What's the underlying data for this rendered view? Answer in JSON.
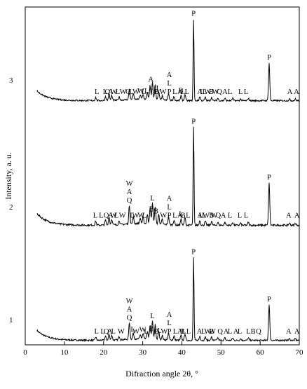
{
  "chart_data": {
    "type": "line",
    "title": "",
    "xlabel": "Difraction angle 2θ, °",
    "ylabel": "Intensity, a. u.",
    "xlim": [
      0,
      70
    ],
    "xticks": [
      0,
      10,
      20,
      30,
      40,
      50,
      60,
      70
    ],
    "grid": false,
    "legend": "none",
    "series_note": "stacked XRD patterns, offset vertically",
    "series": [
      {
        "name": "1",
        "peaks": [
          {
            "x": 18.0,
            "h": 0.04
          },
          {
            "x": 20.5,
            "h": 0.05
          },
          {
            "x": 21.4,
            "h": 0.07
          },
          {
            "x": 22.1,
            "h": 0.06
          },
          {
            "x": 24.0,
            "h": 0.04
          },
          {
            "x": 26.6,
            "h": 0.2
          },
          {
            "x": 27.6,
            "h": 0.07
          },
          {
            "x": 29.4,
            "h": 0.05
          },
          {
            "x": 30.1,
            "h": 0.06
          },
          {
            "x": 31.2,
            "h": 0.09
          },
          {
            "x": 31.9,
            "h": 0.17
          },
          {
            "x": 32.5,
            "h": 0.22
          },
          {
            "x": 33.2,
            "h": 0.18
          },
          {
            "x": 34.1,
            "h": 0.1
          },
          {
            "x": 35.0,
            "h": 0.05
          },
          {
            "x": 36.6,
            "h": 0.08
          },
          {
            "x": 38.0,
            "h": 0.05
          },
          {
            "x": 39.8,
            "h": 0.06
          },
          {
            "x": 40.8,
            "h": 0.08
          },
          {
            "x": 43.0,
            "h": 1.0
          },
          {
            "x": 44.6,
            "h": 0.05
          },
          {
            "x": 46.0,
            "h": 0.04
          },
          {
            "x": 47.6,
            "h": 0.04
          },
          {
            "x": 49.2,
            "h": 0.03
          },
          {
            "x": 51.0,
            "h": 0.03
          },
          {
            "x": 53.0,
            "h": 0.03
          },
          {
            "x": 55.0,
            "h": 0.02
          },
          {
            "x": 57.0,
            "h": 0.03
          },
          {
            "x": 62.3,
            "h": 0.43
          },
          {
            "x": 67.5,
            "h": 0.02
          },
          {
            "x": 69.0,
            "h": 0.02
          }
        ],
        "annotations": [
          {
            "x": 18.2,
            "letters": [
              "L"
            ]
          },
          {
            "x": 19.8,
            "letters": [
              "L"
            ]
          },
          {
            "x": 20.7,
            "letters": [
              "Q"
            ]
          },
          {
            "x": 21.6,
            "letters": [
              "A"
            ]
          },
          {
            "x": 22.5,
            "letters": [
              "L"
            ]
          },
          {
            "x": 24.5,
            "letters": [
              "W"
            ]
          },
          {
            "x": 26.6,
            "letters": [
              "W",
              "A",
              "Q"
            ]
          },
          {
            "x": 27.5,
            "letters": [
              "L"
            ]
          },
          {
            "x": 28.3,
            "letters": [
              "W"
            ]
          },
          {
            "x": 30.0,
            "letters": [
              "W"
            ]
          },
          {
            "x": 30.9,
            "letters": [
              "L"
            ]
          },
          {
            "x": 32.2,
            "letters": [
              "B"
            ]
          },
          {
            "x": 32.5,
            "letters": [
              "L"
            ]
          },
          {
            "x": 33.5,
            "letters": [
              "B"
            ]
          },
          {
            "x": 34.3,
            "letters": [
              "L"
            ]
          },
          {
            "x": 35.5,
            "letters": [
              "W"
            ]
          },
          {
            "x": 36.8,
            "letters": [
              "A",
              "L",
              "P"
            ]
          },
          {
            "x": 38.3,
            "letters": [
              "L"
            ]
          },
          {
            "x": 39.5,
            "letters": [
              "A"
            ]
          },
          {
            "x": 40.1,
            "letters": [
              "B"
            ]
          },
          {
            "x": 40.5,
            "letters": [
              "L"
            ]
          },
          {
            "x": 41.7,
            "letters": [
              "L"
            ]
          },
          {
            "x": 43.0,
            "letters": [
              "P"
            ]
          },
          {
            "x": 44.5,
            "letters": [
              "A"
            ]
          },
          {
            "x": 45.5,
            "letters": [
              "L"
            ]
          },
          {
            "x": 47.6,
            "letters": [
              "B"
            ]
          },
          {
            "x": 46.6,
            "letters": [
              "W"
            ]
          },
          {
            "x": 47.8,
            "letters": [
              "W"
            ]
          },
          {
            "x": 49.8,
            "letters": [
              "Q"
            ]
          },
          {
            "x": 51.3,
            "letters": [
              "A"
            ]
          },
          {
            "x": 52.3,
            "letters": [
              "L"
            ]
          },
          {
            "x": 53.8,
            "letters": [
              "A"
            ]
          },
          {
            "x": 54.8,
            "letters": [
              "L"
            ]
          },
          {
            "x": 57.0,
            "letters": [
              "L"
            ]
          },
          {
            "x": 58.2,
            "letters": [
              "B"
            ]
          },
          {
            "x": 59.6,
            "letters": [
              "Q"
            ]
          },
          {
            "x": 62.3,
            "letters": [
              "P"
            ]
          },
          {
            "x": 67.3,
            "letters": [
              "A"
            ]
          },
          {
            "x": 69.4,
            "letters": [
              "A"
            ]
          }
        ]
      },
      {
        "name": "2",
        "peaks": [
          {
            "x": 18.0,
            "h": 0.04
          },
          {
            "x": 20.5,
            "h": 0.05
          },
          {
            "x": 21.4,
            "h": 0.08
          },
          {
            "x": 22.1,
            "h": 0.06
          },
          {
            "x": 24.0,
            "h": 0.04
          },
          {
            "x": 26.6,
            "h": 0.19
          },
          {
            "x": 27.6,
            "h": 0.07
          },
          {
            "x": 29.4,
            "h": 0.05
          },
          {
            "x": 30.1,
            "h": 0.06
          },
          {
            "x": 31.2,
            "h": 0.09
          },
          {
            "x": 31.9,
            "h": 0.16
          },
          {
            "x": 32.5,
            "h": 0.21
          },
          {
            "x": 33.2,
            "h": 0.18
          },
          {
            "x": 34.1,
            "h": 0.1
          },
          {
            "x": 35.0,
            "h": 0.05
          },
          {
            "x": 36.6,
            "h": 0.08
          },
          {
            "x": 38.0,
            "h": 0.05
          },
          {
            "x": 39.8,
            "h": 0.06
          },
          {
            "x": 40.8,
            "h": 0.08
          },
          {
            "x": 43.0,
            "h": 1.0
          },
          {
            "x": 44.6,
            "h": 0.05
          },
          {
            "x": 46.0,
            "h": 0.04
          },
          {
            "x": 47.6,
            "h": 0.04
          },
          {
            "x": 49.2,
            "h": 0.03
          },
          {
            "x": 51.0,
            "h": 0.03
          },
          {
            "x": 53.0,
            "h": 0.03
          },
          {
            "x": 55.0,
            "h": 0.02
          },
          {
            "x": 57.0,
            "h": 0.03
          },
          {
            "x": 62.3,
            "h": 0.43
          },
          {
            "x": 67.5,
            "h": 0.02
          },
          {
            "x": 69.0,
            "h": 0.02
          }
        ],
        "annotations": [
          {
            "x": 17.9,
            "letters": [
              "L"
            ]
          },
          {
            "x": 19.4,
            "letters": [
              "L"
            ]
          },
          {
            "x": 20.7,
            "letters": [
              "Q"
            ]
          },
          {
            "x": 21.8,
            "letters": [
              "A"
            ]
          },
          {
            "x": 22.6,
            "letters": [
              "W"
            ]
          },
          {
            "x": 23.3,
            "letters": [
              "L"
            ]
          },
          {
            "x": 24.8,
            "letters": [
              "W"
            ]
          },
          {
            "x": 26.6,
            "letters": [
              "W",
              "A",
              "Q"
            ]
          },
          {
            "x": 27.3,
            "letters": [
              "L"
            ]
          },
          {
            "x": 28.2,
            "letters": [
              "W"
            ]
          },
          {
            "x": 29.6,
            "letters": [
              "W"
            ]
          },
          {
            "x": 30.4,
            "letters": [
              "L"
            ]
          },
          {
            "x": 32.3,
            "letters": [
              "B"
            ]
          },
          {
            "x": 32.5,
            "letters": [
              "L"
            ]
          },
          {
            "x": 33.4,
            "letters": [
              "B"
            ]
          },
          {
            "x": 35.3,
            "letters": [
              "W"
            ]
          },
          {
            "x": 36.8,
            "letters": [
              "A",
              "L",
              "P"
            ]
          },
          {
            "x": 38.2,
            "letters": [
              "L"
            ]
          },
          {
            "x": 39.5,
            "letters": [
              "A"
            ]
          },
          {
            "x": 39.8,
            "letters": [
              "L"
            ]
          },
          {
            "x": 40.3,
            "letters": [
              "B"
            ]
          },
          {
            "x": 41.6,
            "letters": [
              "L"
            ]
          },
          {
            "x": 43.0,
            "letters": [
              "P"
            ]
          },
          {
            "x": 44.6,
            "letters": [
              "A"
            ]
          },
          {
            "x": 45.7,
            "letters": [
              "L"
            ]
          },
          {
            "x": 44.9,
            "letters": [
              "L"
            ]
          },
          {
            "x": 46.2,
            "letters": [
              "W"
            ]
          },
          {
            "x": 47.6,
            "letters": [
              "B"
            ]
          },
          {
            "x": 48.2,
            "letters": [
              "W"
            ]
          },
          {
            "x": 49.3,
            "letters": [
              "Q"
            ]
          },
          {
            "x": 50.6,
            "letters": [
              "A"
            ]
          },
          {
            "x": 52.3,
            "letters": [
              "L"
            ]
          },
          {
            "x": 54.8,
            "letters": [
              "L"
            ]
          },
          {
            "x": 56.4,
            "letters": [
              "L"
            ]
          },
          {
            "x": 62.3,
            "letters": [
              "P"
            ]
          },
          {
            "x": 67.3,
            "letters": [
              "A"
            ]
          },
          {
            "x": 69.4,
            "letters": [
              "A"
            ]
          }
        ]
      },
      {
        "name": "3",
        "peaks": [
          {
            "x": 18.0,
            "h": 0.04
          },
          {
            "x": 20.5,
            "h": 0.05
          },
          {
            "x": 21.4,
            "h": 0.08
          },
          {
            "x": 22.1,
            "h": 0.06
          },
          {
            "x": 24.0,
            "h": 0.04
          },
          {
            "x": 26.6,
            "h": 0.13
          },
          {
            "x": 27.6,
            "h": 0.07
          },
          {
            "x": 29.4,
            "h": 0.05
          },
          {
            "x": 30.1,
            "h": 0.06
          },
          {
            "x": 31.2,
            "h": 0.09
          },
          {
            "x": 31.9,
            "h": 0.16
          },
          {
            "x": 32.5,
            "h": 0.21
          },
          {
            "x": 33.2,
            "h": 0.19
          },
          {
            "x": 34.1,
            "h": 0.1
          },
          {
            "x": 35.0,
            "h": 0.05
          },
          {
            "x": 36.6,
            "h": 0.08
          },
          {
            "x": 38.0,
            "h": 0.05
          },
          {
            "x": 39.8,
            "h": 0.06
          },
          {
            "x": 40.8,
            "h": 0.08
          },
          {
            "x": 43.0,
            "h": 1.0
          },
          {
            "x": 44.6,
            "h": 0.05
          },
          {
            "x": 46.0,
            "h": 0.04
          },
          {
            "x": 47.6,
            "h": 0.04
          },
          {
            "x": 49.2,
            "h": 0.03
          },
          {
            "x": 51.0,
            "h": 0.03
          },
          {
            "x": 53.0,
            "h": 0.03
          },
          {
            "x": 55.0,
            "h": 0.02
          },
          {
            "x": 57.0,
            "h": 0.03
          },
          {
            "x": 62.3,
            "h": 0.46
          },
          {
            "x": 67.5,
            "h": 0.02
          },
          {
            "x": 69.0,
            "h": 0.02
          }
        ],
        "annotations": [
          {
            "x": 18.3,
            "letters": [
              "L"
            ]
          },
          {
            "x": 20.4,
            "letters": [
              "L"
            ]
          },
          {
            "x": 21.0,
            "letters": [
              "Q"
            ]
          },
          {
            "x": 21.8,
            "letters": [
              "A"
            ]
          },
          {
            "x": 22.6,
            "letters": [
              "W"
            ]
          },
          {
            "x": 23.6,
            "letters": [
              "L"
            ]
          },
          {
            "x": 25.0,
            "letters": [
              "W"
            ]
          },
          {
            "x": 26.3,
            "letters": [
              "Q"
            ]
          },
          {
            "x": 27.1,
            "letters": [
              "L"
            ]
          },
          {
            "x": 28.3,
            "letters": [
              "W"
            ]
          },
          {
            "x": 29.5,
            "letters": [
              "W"
            ]
          },
          {
            "x": 30.3,
            "letters": [
              "L"
            ]
          },
          {
            "x": 31.0,
            "letters": [
              "L"
            ]
          },
          {
            "x": 32.1,
            "letters": [
              "A",
              "L"
            ]
          },
          {
            "x": 33.5,
            "letters": [
              "B"
            ]
          },
          {
            "x": 34.0,
            "letters": [
              "L"
            ]
          },
          {
            "x": 35.2,
            "letters": [
              "W"
            ]
          },
          {
            "x": 36.8,
            "letters": [
              "A",
              "L",
              "P"
            ]
          },
          {
            "x": 38.2,
            "letters": [
              "L"
            ]
          },
          {
            "x": 39.5,
            "letters": [
              "A"
            ]
          },
          {
            "x": 39.8,
            "letters": [
              "B"
            ]
          },
          {
            "x": 40.3,
            "letters": [
              "L"
            ]
          },
          {
            "x": 41.3,
            "letters": [
              "L"
            ]
          },
          {
            "x": 43.0,
            "letters": [
              "P"
            ]
          },
          {
            "x": 44.6,
            "letters": [
              "A"
            ]
          },
          {
            "x": 45.2,
            "letters": [
              "L"
            ]
          },
          {
            "x": 45.8,
            "letters": [
              "L"
            ]
          },
          {
            "x": 46.6,
            "letters": [
              "W"
            ]
          },
          {
            "x": 47.5,
            "letters": [
              "B"
            ]
          },
          {
            "x": 48.6,
            "letters": [
              "W"
            ]
          },
          {
            "x": 49.6,
            "letters": [
              "Q"
            ]
          },
          {
            "x": 51.0,
            "letters": [
              "A"
            ]
          },
          {
            "x": 52.3,
            "letters": [
              "L"
            ]
          },
          {
            "x": 55.0,
            "letters": [
              "L"
            ]
          },
          {
            "x": 56.4,
            "letters": [
              "L"
            ]
          },
          {
            "x": 62.3,
            "letters": [
              "P"
            ]
          },
          {
            "x": 67.6,
            "letters": [
              "A"
            ]
          },
          {
            "x": 69.3,
            "letters": [
              "A"
            ]
          }
        ]
      }
    ]
  }
}
